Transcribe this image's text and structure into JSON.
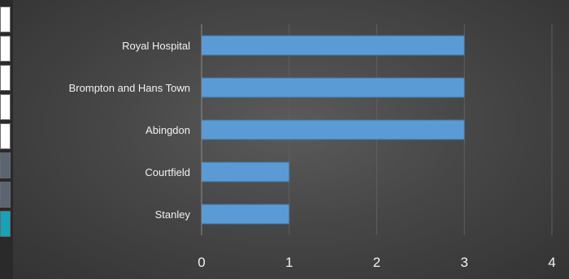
{
  "left_strip": {
    "cells": [
      {
        "color": "#ffffff"
      },
      {
        "color": "#ffffff"
      },
      {
        "color": "#ffffff"
      },
      {
        "color": "#ffffff"
      },
      {
        "color": "#ffffff"
      },
      {
        "color": "#5a6472"
      },
      {
        "color": "#5a6472"
      },
      {
        "color": "#17a2b8"
      }
    ]
  },
  "colors": {
    "bar": "#5b9bd5",
    "bar_edge": "#41719c",
    "grid": "#5e5e5e",
    "axis": "#8c8c8c",
    "text": "#f2f2f2"
  },
  "chart_data": {
    "type": "bar",
    "orientation": "horizontal",
    "categories": [
      "Royal Hospital",
      "Brompton and Hans Town",
      "Abingdon",
      "Courtfield",
      "Stanley"
    ],
    "values": [
      3,
      3,
      3,
      1,
      1
    ],
    "xlim": [
      0,
      4
    ],
    "xticks": [
      0,
      1,
      2,
      3,
      4
    ],
    "title": "",
    "xlabel": "",
    "ylabel": "",
    "grid": true,
    "legend": "none"
  }
}
